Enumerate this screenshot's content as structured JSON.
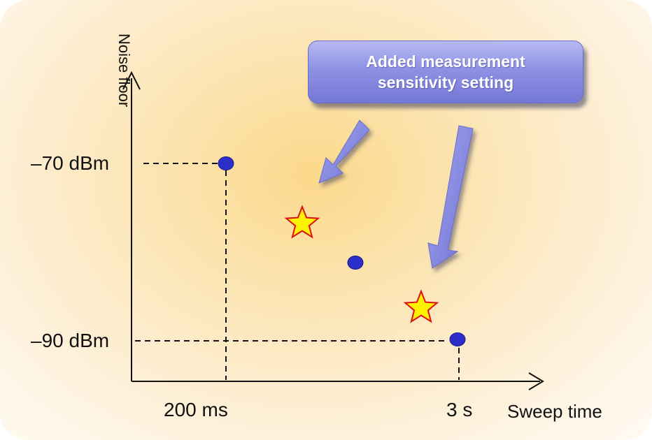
{
  "diagram": {
    "y_axis_title": "Noise floor",
    "x_axis_title": "Sweep time",
    "y_labels": {
      "top": "–70 dBm",
      "bottom": "–90 dBm"
    },
    "x_labels": {
      "left": "200 ms",
      "right": "3 s"
    },
    "callout": {
      "line1": "Added measurement",
      "line2": "sensitivity setting"
    },
    "points": [
      {
        "kind": "dot",
        "sweep_time": "200 ms",
        "noise_floor": "–70 dBm"
      },
      {
        "kind": "star"
      },
      {
        "kind": "dot"
      },
      {
        "kind": "star"
      },
      {
        "kind": "dot",
        "sweep_time": "3 s",
        "noise_floor": "–90 dBm"
      }
    ],
    "colors": {
      "dot": "#2b2fc7",
      "star_fill": "#fff200",
      "star_stroke": "#e01010",
      "arrow": "#8c90e6",
      "callout": "#8e92e4"
    }
  }
}
